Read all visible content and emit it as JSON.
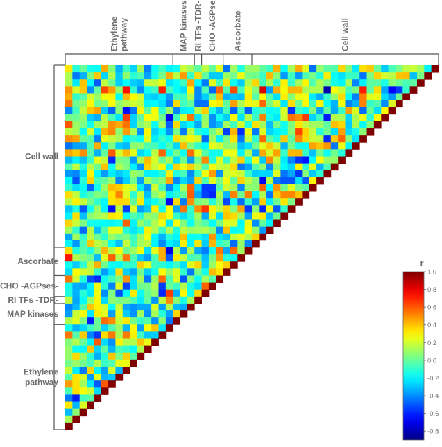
{
  "chart_data": {
    "type": "heatmap",
    "title": "",
    "layout": "lower-left triangle correlation matrix",
    "top_groups": [
      "Ethylene pathway",
      "MAP kinases",
      "RI TFs -TDR-",
      "CHO -AGPses-",
      "Ascorbate",
      "Cell wall"
    ],
    "left_groups": [
      "Cell wall",
      "Ascorbate",
      "CHO -AGPses-",
      "RI TFs -TDR-",
      "MAP kinases",
      "Ethylene pathway"
    ],
    "group_sizes": {
      "Ethylene pathway": 15,
      "MAP kinases": 3,
      "RI TFs -TDR-": 1,
      "CHO -AGPses-": 3,
      "Ascorbate": 4,
      "Cell wall": 26
    },
    "matrix_size": 52,
    "diagonal_value": 1.0,
    "colorbar": {
      "label": "r",
      "min": -0.9,
      "max": 1.0,
      "ticks": [
        "1.0",
        "0.8",
        "0.6",
        "0.4",
        "0.2",
        "0.0",
        "-0.2",
        "-0.4",
        "-0.6",
        "-0.8"
      ],
      "tick_values": [
        1.0,
        0.8,
        0.6,
        0.4,
        0.2,
        0.0,
        -0.2,
        -0.4,
        -0.6,
        -0.8
      ],
      "colormap": "jet"
    },
    "colors": {
      "jet_low": "#00007f",
      "jet_high": "#7f0000",
      "axis": "#555555",
      "label": "#6e6e6e"
    }
  }
}
